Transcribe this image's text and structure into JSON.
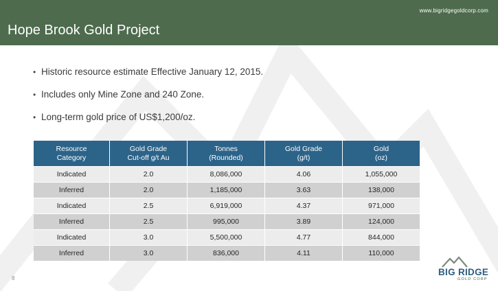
{
  "header": {
    "website": "www.bigridgegoldcorp.com",
    "title": "Hope Brook Gold Project"
  },
  "bullets": [
    "Historic resource estimate Effective January 12, 2015.",
    "Includes only Mine Zone and 240 Zone.",
    "Long-term gold price of US$1,200/oz."
  ],
  "table": {
    "headers": [
      [
        "Resource",
        "Category"
      ],
      [
        "Gold Grade",
        "Cut-off g/t Au"
      ],
      [
        "Tonnes",
        "(Rounded)"
      ],
      [
        "Gold Grade",
        "(g/t)"
      ],
      [
        "Gold",
        "(oz)"
      ]
    ],
    "rows": [
      [
        "Indicated",
        "2.0",
        "8,086,000",
        "4.06",
        "1,055,000"
      ],
      [
        "Inferred",
        "2.0",
        "1,185,000",
        "3.63",
        "138,000"
      ],
      [
        "Indicated",
        "2.5",
        "6,919,000",
        "4.37",
        "971,000"
      ],
      [
        "Inferred",
        "2.5",
        "995,000",
        "3.89",
        "124,000"
      ],
      [
        "Indicated",
        "3.0",
        "5,500,000",
        "4.77",
        "844,000"
      ],
      [
        "Inferred",
        "3.0",
        "836,000",
        "4.11",
        "110,000"
      ]
    ]
  },
  "page_number": "8",
  "logo": {
    "name": "BIG RIDGE",
    "subtitle": "GOLD CORP",
    "icon": "mountain-logo-icon"
  },
  "colors": {
    "header_bg": "#4e6b4e",
    "table_header_bg": "#2c6389",
    "row_light": "#ececec",
    "row_dark": "#d0d0d0",
    "watermark": "#f1f1f1"
  }
}
